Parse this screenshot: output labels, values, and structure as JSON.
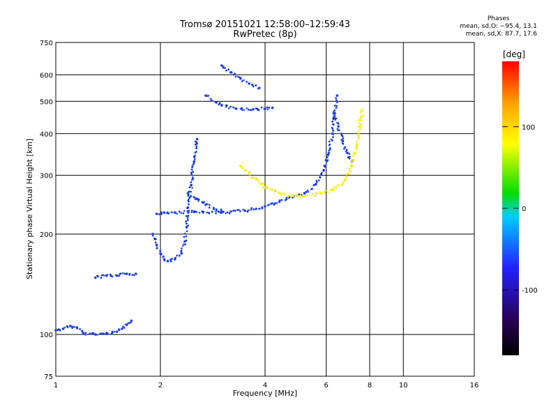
{
  "chart_data": {
    "type": "scatter",
    "title": "Tromsø 20151021 12:58:00–12:59:43",
    "subtitle": "RwPretec (8p)",
    "xlabel": "Frequency [MHz]",
    "ylabel": "Stationary phase Virtual Height [km]",
    "x_scale": "log",
    "y_scale": "log",
    "xlim": [
      1,
      16
    ],
    "ylim": [
      75,
      750
    ],
    "x_ticks": [
      1,
      2,
      4,
      6,
      8,
      10,
      16
    ],
    "y_ticks": [
      75,
      100,
      200,
      300,
      400,
      500,
      600,
      750
    ],
    "x_grid": [
      2,
      4,
      6,
      8,
      10
    ],
    "y_grid": [
      100,
      200,
      300,
      400,
      500,
      600
    ],
    "colorbar": {
      "label": "[deg]",
      "ticks": [
        100,
        0,
        -100
      ],
      "range": [
        -180,
        180
      ],
      "colors": [
        "#000000",
        "#2a0055",
        "#2222ff",
        "#00ccff",
        "#00dd00",
        "#ffff00",
        "#ffa000",
        "#ff0000"
      ]
    },
    "stats": {
      "header": "Phases",
      "line_o": "mean, sd,O: −95.4, 13.1",
      "line_x": "mean, sd,X: 87.7, 17.6"
    },
    "traces": [
      {
        "mode": "O",
        "points": [
          [
            1.0,
            103
          ],
          [
            1.05,
            104
          ],
          [
            1.1,
            106
          ],
          [
            1.15,
            105
          ],
          [
            1.2,
            101
          ],
          [
            1.3,
            100
          ],
          [
            1.4,
            101
          ],
          [
            1.5,
            102
          ],
          [
            1.55,
            104
          ],
          [
            1.6,
            107
          ],
          [
            1.65,
            110
          ]
        ]
      },
      {
        "mode": "O",
        "points": [
          [
            1.3,
            148
          ],
          [
            1.4,
            150
          ],
          [
            1.5,
            150
          ],
          [
            1.6,
            152
          ],
          [
            1.7,
            152
          ]
        ]
      },
      {
        "mode": "O",
        "points": [
          [
            1.9,
            200
          ],
          [
            1.95,
            185
          ],
          [
            2.0,
            175
          ],
          [
            2.05,
            168
          ],
          [
            2.1,
            166
          ],
          [
            2.2,
            168
          ],
          [
            2.3,
            175
          ],
          [
            2.35,
            190
          ],
          [
            2.38,
            210
          ],
          [
            2.4,
            240
          ],
          [
            2.45,
            280
          ],
          [
            2.5,
            330
          ],
          [
            2.55,
            385
          ]
        ]
      },
      {
        "mode": "O",
        "points": [
          [
            1.95,
            230
          ],
          [
            2.05,
            232
          ],
          [
            2.2,
            232
          ],
          [
            2.5,
            233
          ],
          [
            3.0,
            232
          ],
          [
            3.5,
            235
          ],
          [
            4.0,
            242
          ],
          [
            4.4,
            250
          ],
          [
            4.8,
            258
          ],
          [
            5.2,
            265
          ],
          [
            5.6,
            282
          ],
          [
            5.9,
            310
          ],
          [
            6.1,
            350
          ],
          [
            6.25,
            400
          ],
          [
            6.35,
            460
          ],
          [
            6.45,
            520
          ]
        ]
      },
      {
        "mode": "O",
        "points": [
          [
            2.4,
            265
          ],
          [
            2.55,
            255
          ],
          [
            2.7,
            245
          ],
          [
            2.85,
            238
          ],
          [
            3.0,
            234
          ]
        ]
      },
      {
        "mode": "O",
        "points": [
          [
            2.7,
            520
          ],
          [
            3.0,
            487
          ],
          [
            3.3,
            475
          ],
          [
            3.7,
            473
          ],
          [
            4.0,
            475
          ],
          [
            4.2,
            478
          ]
        ]
      },
      {
        "mode": "O",
        "points": [
          [
            3.0,
            640
          ],
          [
            3.2,
            610
          ],
          [
            3.4,
            585
          ],
          [
            3.6,
            565
          ],
          [
            3.85,
            548
          ]
        ]
      },
      {
        "mode": "O",
        "points": [
          [
            6.3,
            460
          ],
          [
            6.5,
            420
          ],
          [
            6.7,
            380
          ],
          [
            6.9,
            350
          ],
          [
            7.1,
            330
          ]
        ]
      },
      {
        "mode": "X",
        "points": [
          [
            3.4,
            320
          ],
          [
            3.7,
            295
          ],
          [
            4.0,
            276
          ],
          [
            4.4,
            266
          ],
          [
            4.8,
            260
          ],
          [
            5.2,
            260
          ],
          [
            5.8,
            265
          ],
          [
            6.3,
            272
          ],
          [
            6.8,
            290
          ],
          [
            7.1,
            320
          ],
          [
            7.35,
            370
          ],
          [
            7.5,
            420
          ],
          [
            7.6,
            470
          ]
        ]
      }
    ]
  }
}
